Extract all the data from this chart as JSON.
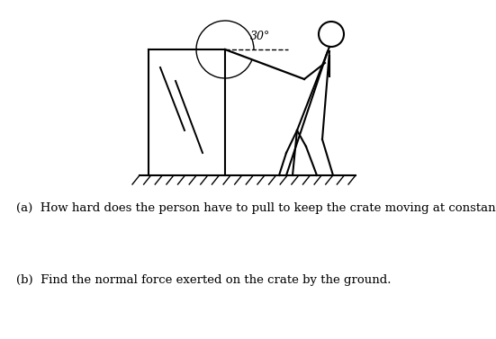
{
  "angle_label": "30°",
  "question_a": "(a)  How hard does the person have to pull to keep the crate moving at constant velocity?",
  "question_b": "(b)  Find the normal force exerted on the crate by the ground.",
  "bg_color": "#ffffff",
  "line_color": "#000000",
  "fig_width": 5.51,
  "fig_height": 3.77,
  "dpi": 100
}
